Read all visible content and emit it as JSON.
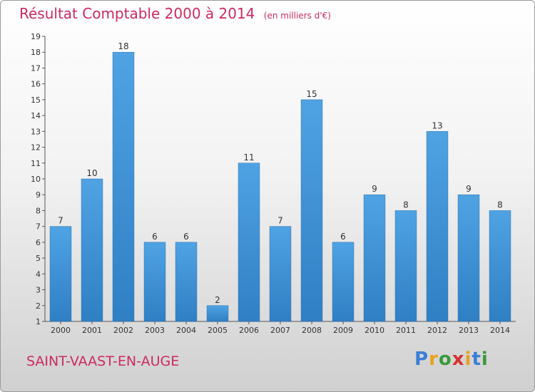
{
  "header": {
    "title": "Résultat Comptable 2000 à 2014",
    "unit": "(en milliers d'€)"
  },
  "footer": {
    "place": "SAINT-VAAST-EN-AUGE",
    "logo_letters": [
      "P",
      "r",
      "o",
      "x",
      "i",
      "t",
      "i"
    ],
    "logo_colors": [
      "#3a7fd5",
      "#e8a020",
      "#3a9a3a",
      "#d83030",
      "#e8a020",
      "#3a7fd5",
      "#3a9a3a"
    ]
  },
  "chart_data": {
    "type": "bar",
    "title": "Résultat Comptable 2000 à 2014",
    "categories": [
      "2000",
      "2001",
      "2002",
      "2003",
      "2004",
      "2005",
      "2006",
      "2007",
      "2008",
      "2009",
      "2010",
      "2011",
      "2012",
      "2013",
      "2014"
    ],
    "values": [
      7,
      10,
      18,
      6,
      6,
      2,
      11,
      7,
      15,
      6,
      9,
      8,
      13,
      9,
      8
    ],
    "y_ticks": [
      "1",
      "2",
      "3",
      "4",
      "5",
      "6",
      "7",
      "8",
      "9",
      "10",
      "11",
      "12",
      "13",
      "14",
      "15",
      "16",
      "17",
      "18",
      "19"
    ],
    "ylim": [
      1,
      19
    ],
    "grid": false,
    "bar_color": "#4fa3e3",
    "bar_color_dark": "#2f7fc4"
  }
}
